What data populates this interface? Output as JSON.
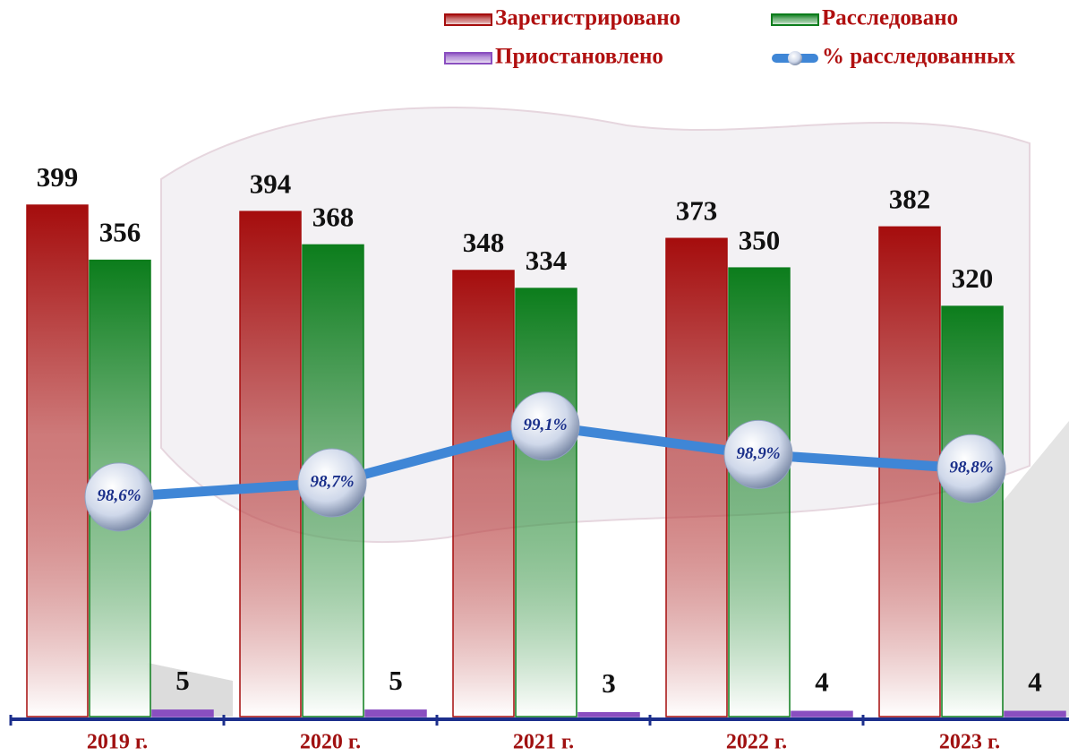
{
  "chart_data": {
    "type": "bar",
    "categories": [
      "2019 г.",
      "2020 г.",
      "2021 г.",
      "2022 г.",
      "2023 г."
    ],
    "series": [
      {
        "name": "Зарегистрировано",
        "color": "#a50d0d",
        "values": [
          399,
          394,
          348,
          373,
          382
        ]
      },
      {
        "name": "Расследовано",
        "color": "#0c7d1c",
        "values": [
          356,
          368,
          334,
          350,
          320
        ]
      },
      {
        "name": "Приостановлено",
        "color": "#8a4fc0",
        "values": [
          5,
          5,
          3,
          4,
          4
        ]
      },
      {
        "name": "% расследованных",
        "type": "line",
        "axis": "y2",
        "color": "#3f86d6",
        "values": [
          98.6,
          98.7,
          99.1,
          98.9,
          98.8
        ],
        "value_labels": [
          "98,6%",
          "98,7%",
          "99,1%",
          "98,9%",
          "98,8%"
        ]
      }
    ],
    "ylim": [
      0,
      420
    ],
    "y2lim": [
      97.05,
      100.85
    ],
    "legend": "top-right"
  }
}
